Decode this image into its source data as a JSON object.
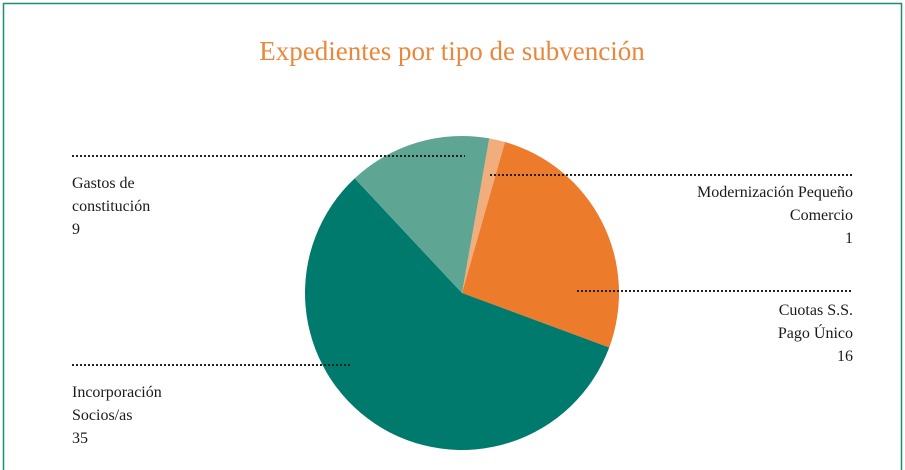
{
  "chart_data": {
    "type": "pie",
    "title": "Expedientes por tipo de subvención",
    "categories": [
      "Modernización Pequeño Comercio",
      "Cuotas S.S. Pago Único",
      "Incorporación Socios/as",
      "Gastos de constitución"
    ],
    "values": [
      1,
      16,
      35,
      9
    ],
    "colors": [
      "#f2ad7c",
      "#ec7b2b",
      "#007a6c",
      "#5ea594"
    ]
  }
}
